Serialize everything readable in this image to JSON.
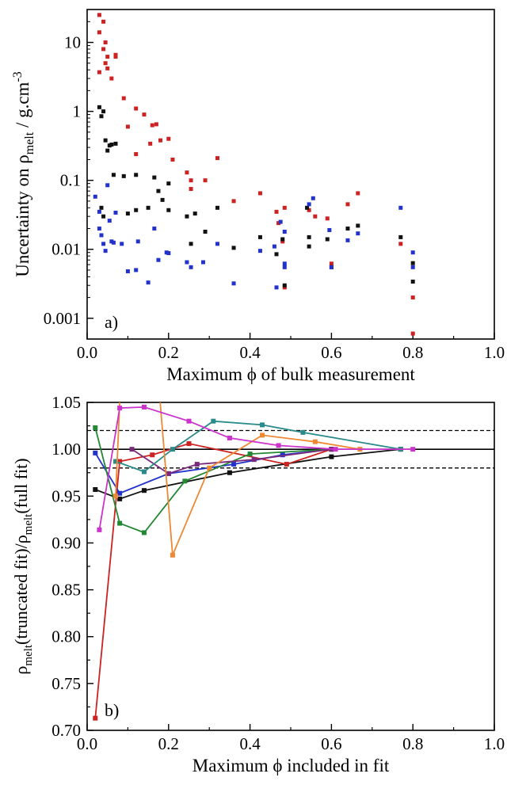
{
  "chart_data": [
    {
      "type": "scatter",
      "panel_label": "a)",
      "xlabel": "Maximum ϕ of bulk measurement",
      "ylabel_parts": {
        "pre": "Uncertainty on ρ",
        "sub": "melt",
        "post": " / g.cm",
        "sup": "-3"
      },
      "xlim": [
        0.0,
        1.0
      ],
      "ylim": [
        0.0005,
        30
      ],
      "yscale": "log",
      "x_ticks": [
        "0.0",
        "0.2",
        "0.4",
        "0.6",
        "0.8",
        "1.0"
      ],
      "y_ticks": [
        "0.001",
        "0.01",
        "0.1",
        "1",
        "10"
      ],
      "grid": false,
      "series": [
        {
          "color": "#cc2222",
          "points": [
            [
              0.03,
              25
            ],
            [
              0.03,
              14
            ],
            [
              0.04,
              20
            ],
            [
              0.03,
              3.7
            ],
            [
              0.04,
              8.0
            ],
            [
              0.045,
              10
            ],
            [
              0.045,
              5.0
            ],
            [
              0.05,
              4.2
            ],
            [
              0.05,
              6.2
            ],
            [
              0.06,
              3.0
            ],
            [
              0.07,
              6.2
            ],
            [
              0.07,
              6.6
            ],
            [
              0.09,
              1.55
            ],
            [
              0.1,
              0.6
            ],
            [
              0.12,
              1.1
            ],
            [
              0.12,
              0.24
            ],
            [
              0.14,
              0.9
            ],
            [
              0.155,
              0.34
            ],
            [
              0.16,
              0.63
            ],
            [
              0.17,
              0.65
            ],
            [
              0.18,
              0.38
            ],
            [
              0.2,
              0.4
            ],
            [
              0.21,
              0.2
            ],
            [
              0.245,
              0.13
            ],
            [
              0.255,
              0.1
            ],
            [
              0.255,
              0.075
            ],
            [
              0.29,
              0.1
            ],
            [
              0.32,
              0.21
            ],
            [
              0.36,
              0.05
            ],
            [
              0.425,
              0.065
            ],
            [
              0.465,
              0.035
            ],
            [
              0.485,
              0.04
            ],
            [
              0.47,
              0.024
            ],
            [
              0.48,
              0.013
            ],
            [
              0.485,
              0.0028
            ],
            [
              0.545,
              0.037
            ],
            [
              0.56,
              0.03
            ],
            [
              0.59,
              0.028
            ],
            [
              0.6,
              0.0062
            ],
            [
              0.64,
              0.045
            ],
            [
              0.665,
              0.065
            ],
            [
              0.77,
              0.012
            ],
            [
              0.8,
              0.002
            ],
            [
              0.8,
              0.0006
            ]
          ]
        },
        {
          "color": "#111111",
          "points": [
            [
              0.03,
              1.15
            ],
            [
              0.035,
              0.85
            ],
            [
              0.04,
              1.0
            ],
            [
              0.045,
              0.38
            ],
            [
              0.05,
              0.27
            ],
            [
              0.055,
              0.32
            ],
            [
              0.06,
              0.33
            ],
            [
              0.065,
              0.12
            ],
            [
              0.07,
              0.34
            ],
            [
              0.035,
              0.04
            ],
            [
              0.04,
              0.03
            ],
            [
              0.09,
              0.115
            ],
            [
              0.1,
              0.033
            ],
            [
              0.12,
              0.037
            ],
            [
              0.12,
              0.12
            ],
            [
              0.15,
              0.04
            ],
            [
              0.165,
              0.11
            ],
            [
              0.175,
              0.07
            ],
            [
              0.185,
              0.052
            ],
            [
              0.2,
              0.09
            ],
            [
              0.2,
              0.037
            ],
            [
              0.245,
              0.03
            ],
            [
              0.255,
              0.012
            ],
            [
              0.265,
              0.033
            ],
            [
              0.29,
              0.018
            ],
            [
              0.32,
              0.04
            ],
            [
              0.36,
              0.0105
            ],
            [
              0.425,
              0.015
            ],
            [
              0.465,
              0.0085
            ],
            [
              0.48,
              0.014
            ],
            [
              0.485,
              0.003
            ],
            [
              0.54,
              0.04
            ],
            [
              0.545,
              0.015
            ],
            [
              0.545,
              0.011
            ],
            [
              0.59,
              0.014
            ],
            [
              0.6,
              0.0055
            ],
            [
              0.64,
              0.02
            ],
            [
              0.665,
              0.022
            ],
            [
              0.77,
              0.015
            ],
            [
              0.8,
              0.0063
            ],
            [
              0.8,
              0.0034
            ]
          ]
        },
        {
          "color": "#2233cc",
          "points": [
            [
              0.02,
              0.058
            ],
            [
              0.03,
              0.035
            ],
            [
              0.03,
              0.02
            ],
            [
              0.035,
              0.016
            ],
            [
              0.04,
              0.012
            ],
            [
              0.045,
              0.0095
            ],
            [
              0.05,
              0.085
            ],
            [
              0.055,
              0.026
            ],
            [
              0.06,
              0.013
            ],
            [
              0.065,
              0.0125
            ],
            [
              0.07,
              0.034
            ],
            [
              0.085,
              0.012
            ],
            [
              0.1,
              0.0048
            ],
            [
              0.12,
              0.005
            ],
            [
              0.125,
              0.013
            ],
            [
              0.15,
              0.0033
            ],
            [
              0.165,
              0.02
            ],
            [
              0.175,
              0.007
            ],
            [
              0.195,
              0.009
            ],
            [
              0.2,
              0.0088
            ],
            [
              0.245,
              0.0065
            ],
            [
              0.255,
              0.0055
            ],
            [
              0.285,
              0.0065
            ],
            [
              0.32,
              0.012
            ],
            [
              0.36,
              0.0032
            ],
            [
              0.425,
              0.0095
            ],
            [
              0.46,
              0.011
            ],
            [
              0.465,
              0.0028
            ],
            [
              0.475,
              0.025
            ],
            [
              0.485,
              0.018
            ],
            [
              0.485,
              0.0062
            ],
            [
              0.485,
              0.0055
            ],
            [
              0.545,
              0.045
            ],
            [
              0.555,
              0.055
            ],
            [
              0.595,
              0.019
            ],
            [
              0.6,
              0.0055
            ],
            [
              0.64,
              0.0135
            ],
            [
              0.665,
              0.017
            ],
            [
              0.77,
              0.04
            ],
            [
              0.8,
              0.009
            ],
            [
              0.8,
              0.0055
            ]
          ]
        }
      ]
    },
    {
      "type": "line",
      "panel_label": "b)",
      "xlabel": "Maximum ϕ included in fit",
      "ylabel_parts": {
        "pre": "ρ",
        "sub1": "melt",
        "mid": "(truncated fit)/ρ",
        "sub2": "melt",
        "post": "(full fit)"
      },
      "xlim": [
        0.0,
        1.0
      ],
      "ylim": [
        0.7,
        1.05
      ],
      "x_ticks": [
        "0.0",
        "0.2",
        "0.4",
        "0.6",
        "0.8",
        "1.0"
      ],
      "y_ticks": [
        "0.70",
        "0.75",
        "0.80",
        "0.85",
        "0.90",
        "0.95",
        "1.00",
        "1.05"
      ],
      "reference_lines": [
        {
          "y": 1.0,
          "style": "solid"
        },
        {
          "y": 1.02,
          "style": "dashed"
        },
        {
          "y": 0.98,
          "style": "dashed"
        }
      ],
      "grid": false,
      "series": [
        {
          "color": "#111111",
          "points": [
            [
              0.02,
              0.957
            ],
            [
              0.08,
              0.947
            ],
            [
              0.14,
              0.956
            ],
            [
              0.35,
              0.975
            ],
            [
              0.6,
              0.992
            ],
            [
              0.77,
              1.0
            ]
          ]
        },
        {
          "color": "#cc2222",
          "points": [
            [
              0.02,
              0.713
            ],
            [
              0.08,
              0.987
            ],
            [
              0.16,
              0.994
            ],
            [
              0.25,
              1.006
            ],
            [
              0.49,
              0.984
            ],
            [
              0.6,
              1.0
            ]
          ]
        },
        {
          "color": "#2233cc",
          "points": [
            [
              0.02,
              0.996
            ],
            [
              0.08,
              0.953
            ],
            [
              0.2,
              0.974
            ],
            [
              0.36,
              0.984
            ],
            [
              0.48,
              0.994
            ],
            [
              0.6,
              1.0
            ]
          ]
        },
        {
          "color": "#228833",
          "points": [
            [
              0.02,
              1.023
            ],
            [
              0.08,
              0.921
            ],
            [
              0.14,
              0.911
            ],
            [
              0.24,
              0.966
            ],
            [
              0.4,
              0.995
            ],
            [
              0.6,
              1.0
            ]
          ]
        },
        {
          "color": "#7a2a7a",
          "points": [
            [
              0.11,
              1.0
            ],
            [
              0.2,
              0.974
            ],
            [
              0.27,
              0.984
            ],
            [
              0.41,
              0.989
            ],
            [
              0.6,
              1.0
            ]
          ]
        },
        {
          "color": "#2a8a8a",
          "points": [
            [
              0.07,
              0.987
            ],
            [
              0.14,
              0.976
            ],
            [
              0.21,
              1.0
            ],
            [
              0.31,
              1.03
            ],
            [
              0.43,
              1.026
            ],
            [
              0.53,
              1.018
            ],
            [
              0.77,
              1.0
            ]
          ]
        },
        {
          "color": "#ee8833",
          "points": [
            [
              0.07,
              0.95
            ],
            [
              0.085,
              1.1
            ],
            [
              0.17,
              1.1
            ],
            [
              0.21,
              0.887
            ],
            [
              0.3,
              0.98
            ],
            [
              0.43,
              1.015
            ],
            [
              0.56,
              1.008
            ],
            [
              0.67,
              1.0
            ]
          ]
        },
        {
          "color": "#cc33cc",
          "points": [
            [
              0.03,
              0.914
            ],
            [
              0.08,
              1.044
            ],
            [
              0.14,
              1.045
            ],
            [
              0.25,
              1.03
            ],
            [
              0.35,
              1.012
            ],
            [
              0.47,
              1.004
            ],
            [
              0.61,
              1.0
            ],
            [
              0.8,
              1.0
            ]
          ]
        }
      ]
    }
  ]
}
